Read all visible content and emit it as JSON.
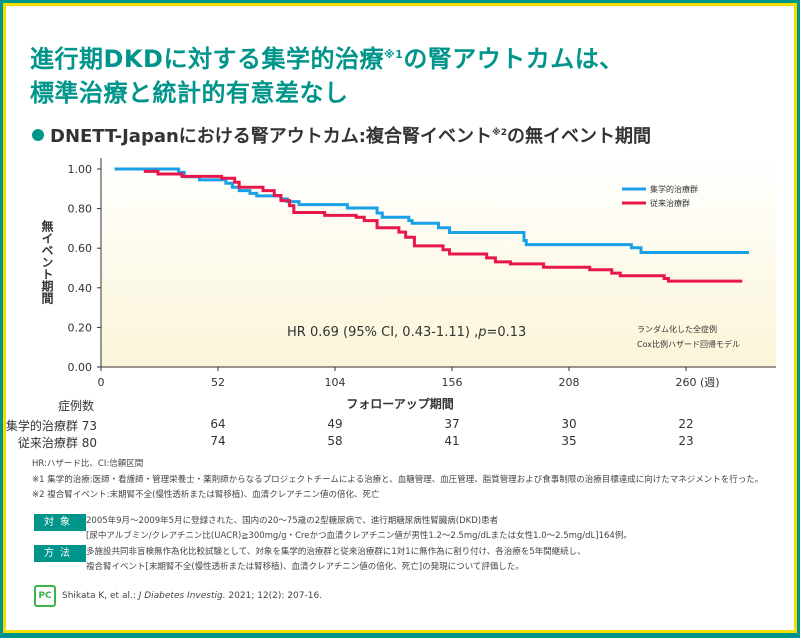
{
  "title": {
    "line1": "進行期DKDに対する集学的治療",
    "line1_sup": "※1",
    "line1_end": "の腎アウトカムは、",
    "line2": "標準治療と統計的有意差なし"
  },
  "subtitle": {
    "text": "DNETT-Japanにおける腎アウトカム:複合腎イベント",
    "sup": "※2",
    "end": "の無イベント期間"
  },
  "chart_data": {
    "type": "line",
    "step": true,
    "ylabel": "無イベント期間",
    "xlabel": "フォローアップ期間",
    "x_unit": "(週)",
    "xlim": [
      0,
      300
    ],
    "ylim": [
      0,
      1
    ],
    "xticks": [
      0,
      52,
      104,
      156,
      208,
      260
    ],
    "yticks": [
      "0.00",
      "0.20",
      "0.40",
      "0.60",
      "0.80",
      "1.00"
    ],
    "grid": false,
    "legend_position": "top-right",
    "series": [
      {
        "name": "集学的治療群",
        "color": "#1aa0e6",
        "points": [
          [
            6,
            1.0
          ],
          [
            34.5,
            0.983
          ],
          [
            37,
            0.961
          ],
          [
            43.8,
            0.945
          ],
          [
            55.5,
            0.928
          ],
          [
            58.4,
            0.908
          ],
          [
            61.4,
            0.891
          ],
          [
            66.2,
            0.877
          ],
          [
            69.2,
            0.864
          ],
          [
            79.9,
            0.849
          ],
          [
            82.8,
            0.835
          ],
          [
            88,
            0.82
          ],
          [
            109.5,
            0.803
          ],
          [
            122.7,
            0.778
          ],
          [
            125,
            0.756
          ],
          [
            136.8,
            0.739
          ],
          [
            138.3,
            0.726
          ],
          [
            150,
            0.703
          ],
          [
            154.9,
            0.679
          ],
          [
            188,
            0.639
          ],
          [
            189,
            0.618
          ],
          [
            235.7,
            0.602
          ],
          [
            240,
            0.578
          ],
          [
            288,
            0.578
          ]
        ]
      },
      {
        "name": "従来治療群",
        "color": "#e8174a",
        "points": [
          [
            19,
            0.988
          ],
          [
            25.3,
            0.975
          ],
          [
            36,
            0.963
          ],
          [
            53.6,
            0.953
          ],
          [
            59.4,
            0.933
          ],
          [
            61.4,
            0.908
          ],
          [
            72,
            0.891
          ],
          [
            77,
            0.866
          ],
          [
            80,
            0.84
          ],
          [
            83.8,
            0.815
          ],
          [
            85.7,
            0.78
          ],
          [
            99.4,
            0.766
          ],
          [
            113.4,
            0.756
          ],
          [
            117,
            0.739
          ],
          [
            122.7,
            0.703
          ],
          [
            132.4,
            0.681
          ],
          [
            135.4,
            0.655
          ],
          [
            139.3,
            0.612
          ],
          [
            152,
            0.592
          ],
          [
            154.9,
            0.571
          ],
          [
            171.4,
            0.551
          ],
          [
            175.3,
            0.531
          ],
          [
            182,
            0.521
          ],
          [
            196.7,
            0.504
          ],
          [
            217.2,
            0.491
          ],
          [
            227,
            0.474
          ],
          [
            230.8,
            0.461
          ],
          [
            250.3,
            0.447
          ],
          [
            252.2,
            0.434
          ],
          [
            285,
            0.434
          ]
        ]
      }
    ],
    "annotation": "HR 0.69 (95% CI, 0.43-1.11) ,p=0.13",
    "annotation_hr": "HR 0.69 (95% CI, 0.43-1.11) ,",
    "annotation_p": "p",
    "annotation_pval": "=0.13",
    "note": [
      "ランダム化した全症例",
      "Cox比例ハザード回帰モデル"
    ]
  },
  "risk_table": {
    "header": "症例数",
    "rows": [
      {
        "label": "集学的治療群",
        "values": [
          "73",
          "64",
          "49",
          "37",
          "30",
          "22"
        ]
      },
      {
        "label": "従来治療群",
        "values": [
          "80",
          "74",
          "58",
          "41",
          "35",
          "23"
        ]
      }
    ]
  },
  "footnotes": {
    "abbrev": "HR:ハザード比、CI:信頼区間",
    "note1": "※1 集学的治療:医師・看護師・管理栄養士・薬剤師からなるプロジェクトチームによる治療と、血糖管理、血圧管理、脂質管理および食事制限の治療目標達成に向けたマネジメントを行った。",
    "note2": "※2 複合腎イベント:末期腎不全(慢性透析または腎移植)、血清クレアチニン値の倍化、死亡"
  },
  "methods": {
    "subject_tag": "対象",
    "subject_line1": "2005年9月～2009年5月に登録された、国内の20～75歳の2型糖尿病で、進行期糖尿病性腎臓病(DKD)患者",
    "subject_line2": "[尿中アルブミン/クレアチニン比(UACR)≧300mg/g・Creかつ血清クレアチニン値が男性1.2～2.5mg/dLまたは女性1.0～2.5mg/dL]164例。",
    "method_tag": "方法",
    "method_line1": "多施設共同非盲検無作為化比較試験として、対象を集学的治療群と従来治療群に1対1に無作為に割り付け、各治療を5年間継続し、",
    "method_line2": "複合腎イベント[末期腎不全(慢性透析または腎移植)、血清クレアチニン値の倍化、死亡]の発現について評価した。"
  },
  "citation": {
    "logo": "PC",
    "authors": "Shikata K, et al.: ",
    "journal": "J Diabetes Investig.",
    "rest": " 2021; 12(2): 207-16."
  },
  "colors": {
    "brand": "#00958a",
    "frame": "#f3dd00",
    "series1": "#1aa0e6",
    "series2": "#e8174a"
  }
}
